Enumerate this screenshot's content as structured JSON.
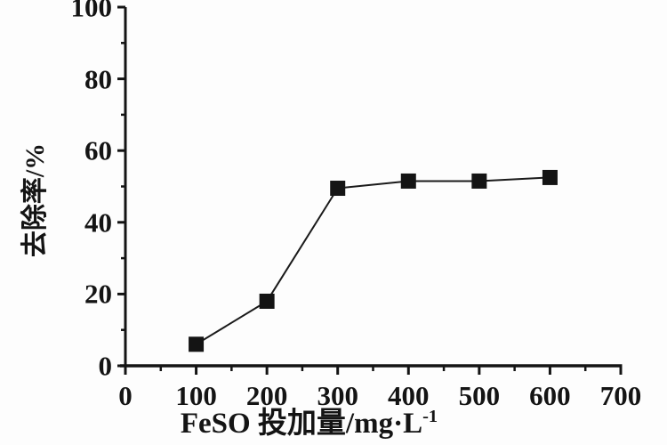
{
  "chart_data": {
    "type": "line",
    "title": "",
    "xlabel": "FeSO 投加量/mg·L⁻¹",
    "xlabel_main": "FeSO 投加量/mg·L",
    "xlabel_sup": "-1",
    "ylabel": "去除率/%",
    "xlim": [
      0,
      700
    ],
    "ylim": [
      0,
      100
    ],
    "x_major_ticks": [
      0,
      100,
      200,
      300,
      400,
      500,
      600,
      700
    ],
    "x_minor_step": 50,
    "y_major_ticks": [
      0,
      20,
      40,
      60,
      80,
      100
    ],
    "y_minor_step": 10,
    "grid": false,
    "legend": false,
    "marker": "filled-square",
    "axis_color": "#141414",
    "line_color": "#1a1a1a",
    "marker_color": "#141414",
    "background_color": "#fdfdfd",
    "series": [
      {
        "name": "removal-rate",
        "x": [
          100,
          200,
          300,
          400,
          500,
          600
        ],
        "y": [
          6,
          18,
          49.5,
          51.5,
          51.5,
          52.5
        ]
      }
    ]
  }
}
